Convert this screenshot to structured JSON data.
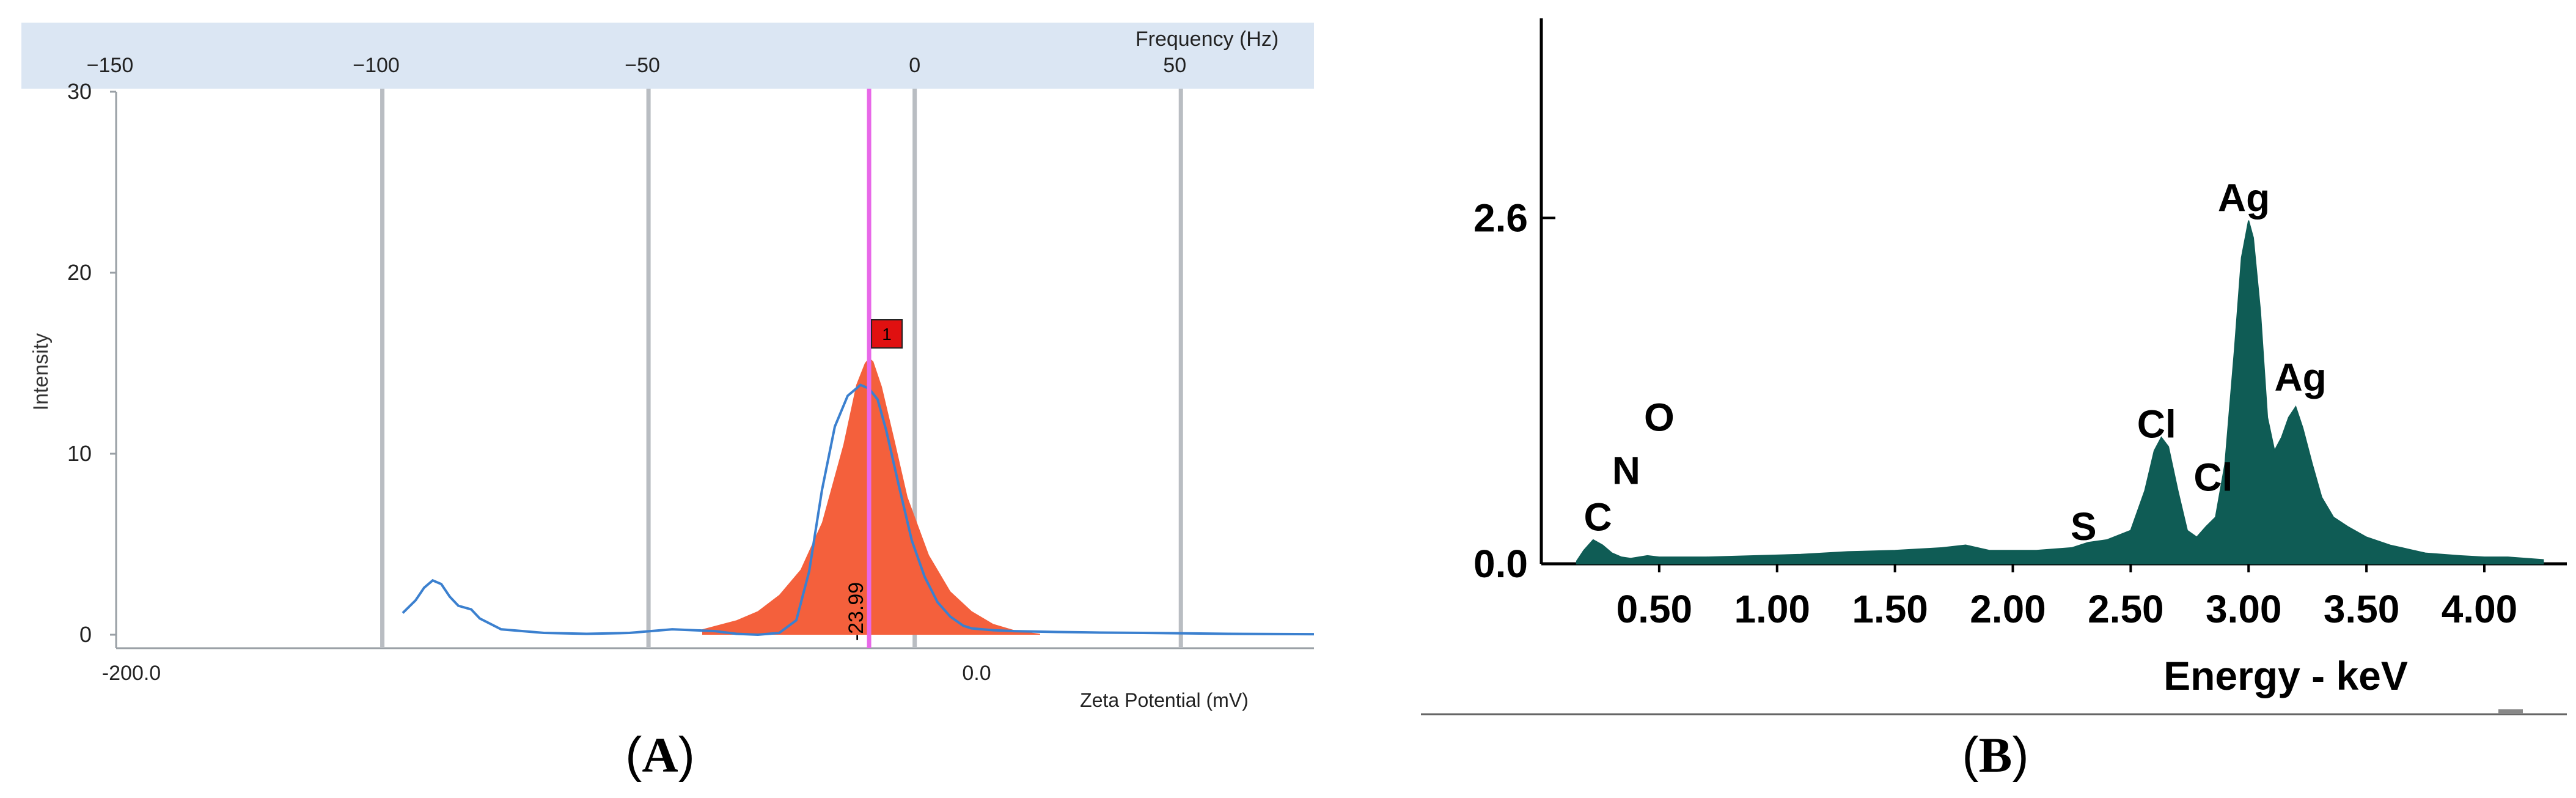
{
  "figure": {
    "panel_a_label": {
      "open": "(",
      "letter": "A",
      "close": ")"
    },
    "panel_b_label": {
      "open": "(",
      "letter": "B",
      "close": ")"
    }
  },
  "colors": {
    "header_band": "#dbe6f3",
    "grid_grey": "#b9bdc2",
    "peak_fill": "#f4603c",
    "curve_blue": "#3b80cf",
    "marker_magenta": "#e868e8",
    "marker_box": "#e01010",
    "eds_fill": "#0f5c55"
  },
  "chart_data": [
    {
      "type": "area",
      "panel": "A",
      "title": "",
      "xlabel": "Zeta Potential (mV)",
      "ylabel": "Intensity",
      "top_xlabel": "Frequency (Hz)",
      "xlim": [
        -200,
        80
      ],
      "ylim": [
        0,
        30
      ],
      "top_xlim": [
        -150,
        75
      ],
      "yticks": [
        0,
        10,
        20,
        30
      ],
      "xticks_bottom": [
        -200,
        0
      ],
      "xticks_bottom_labels": [
        "-200.0",
        "0.0"
      ],
      "xticks_top": [
        -150,
        -100,
        -50,
        0,
        50
      ],
      "xticks_top_labels": [
        "−150",
        "−100",
        "−50",
        "0",
        "50"
      ],
      "gridlines_top_hz": [
        -100,
        -50,
        0,
        50
      ],
      "peak_marker": {
        "x": -23.99,
        "label": "-23.99",
        "badge": "1"
      },
      "series": [
        {
          "name": "Peak 1 (filled)",
          "x": [
            -63,
            -55,
            -50,
            -45,
            -40,
            -35,
            -30,
            -27,
            -25,
            -24,
            -23,
            -21,
            -18,
            -15,
            -10,
            -5,
            0,
            5,
            10,
            16
          ],
          "y": [
            0.3,
            0.8,
            1.3,
            2.2,
            3.6,
            6.2,
            10.5,
            13.8,
            15.0,
            15.3,
            15.1,
            13.7,
            10.7,
            7.6,
            4.4,
            2.4,
            1.3,
            0.6,
            0.25,
            0.05
          ]
        },
        {
          "name": "Distribution curve",
          "x": [
            -133,
            -130,
            -128,
            -126,
            -124,
            -122,
            -120,
            -117,
            -115,
            -110,
            -100,
            -90,
            -80,
            -70,
            -60,
            -55,
            -50,
            -45,
            -41,
            -38,
            -35,
            -32,
            -29,
            -26,
            -24,
            -22,
            -20,
            -17,
            -14,
            -11,
            -8,
            -5,
            -2,
            0,
            5,
            10,
            20,
            30,
            40,
            60,
            80
          ],
          "y": [
            1.2,
            1.9,
            2.6,
            3.0,
            2.8,
            2.1,
            1.6,
            1.4,
            0.9,
            0.3,
            0.1,
            0.05,
            0.1,
            0.3,
            0.2,
            0.05,
            0.0,
            0.1,
            0.8,
            3.5,
            8.0,
            11.5,
            13.2,
            13.8,
            13.6,
            13.0,
            11.3,
            8.2,
            5.2,
            3.2,
            1.8,
            1.0,
            0.5,
            0.35,
            0.25,
            0.2,
            0.15,
            0.12,
            0.1,
            0.05,
            0.03
          ]
        }
      ]
    },
    {
      "type": "area",
      "panel": "B",
      "title": "",
      "xlabel": "Energy - keV",
      "ylabel": "",
      "xlim": [
        0.0,
        4.35
      ],
      "ylim": [
        0,
        4.1
      ],
      "yticks": [
        0.0,
        2.6
      ],
      "yticks_labels": [
        "0.0",
        "2.6"
      ],
      "xticks": [
        0.5,
        1.0,
        1.5,
        2.0,
        2.5,
        3.0,
        3.5,
        4.0
      ],
      "xticks_labels": [
        "0.50",
        "1.00",
        "1.50",
        "2.00",
        "2.50",
        "3.00",
        "3.50",
        "4.00"
      ],
      "annotations": [
        {
          "text": "C",
          "x": 0.24,
          "y": 0.25
        },
        {
          "text": "N",
          "x": 0.36,
          "y": 0.6
        },
        {
          "text": "O",
          "x": 0.5,
          "y": 1.0
        },
        {
          "text": "S",
          "x": 2.3,
          "y": 0.18
        },
        {
          "text": "Cl",
          "x": 2.61,
          "y": 0.95
        },
        {
          "text": "Cl",
          "x": 2.85,
          "y": 0.55
        },
        {
          "text": "Ag",
          "x": 2.98,
          "y": 2.65
        },
        {
          "text": "Ag",
          "x": 3.22,
          "y": 1.3
        }
      ],
      "series": [
        {
          "name": "EDS spectrum",
          "x": [
            0.15,
            0.18,
            0.22,
            0.26,
            0.3,
            0.34,
            0.38,
            0.45,
            0.5,
            0.55,
            0.7,
            0.9,
            1.1,
            1.3,
            1.5,
            1.7,
            1.8,
            1.9,
            2.1,
            2.25,
            2.32,
            2.4,
            2.5,
            2.56,
            2.6,
            2.63,
            2.66,
            2.7,
            2.74,
            2.78,
            2.82,
            2.86,
            2.9,
            2.94,
            2.97,
            3.0,
            3.02,
            3.05,
            3.08,
            3.11,
            3.14,
            3.17,
            3.2,
            3.23,
            3.27,
            3.31,
            3.36,
            3.42,
            3.5,
            3.6,
            3.75,
            3.9,
            4.0,
            4.1,
            4.25
          ],
          "y": [
            0.02,
            0.1,
            0.18,
            0.14,
            0.08,
            0.05,
            0.04,
            0.06,
            0.05,
            0.05,
            0.05,
            0.06,
            0.07,
            0.09,
            0.1,
            0.12,
            0.14,
            0.1,
            0.1,
            0.12,
            0.16,
            0.18,
            0.25,
            0.55,
            0.85,
            0.95,
            0.88,
            0.55,
            0.25,
            0.2,
            0.28,
            0.35,
            0.75,
            1.6,
            2.3,
            2.58,
            2.45,
            1.9,
            1.1,
            0.85,
            0.95,
            1.1,
            1.18,
            1.02,
            0.75,
            0.5,
            0.35,
            0.28,
            0.2,
            0.14,
            0.08,
            0.06,
            0.05,
            0.05,
            0.03
          ]
        }
      ]
    }
  ]
}
